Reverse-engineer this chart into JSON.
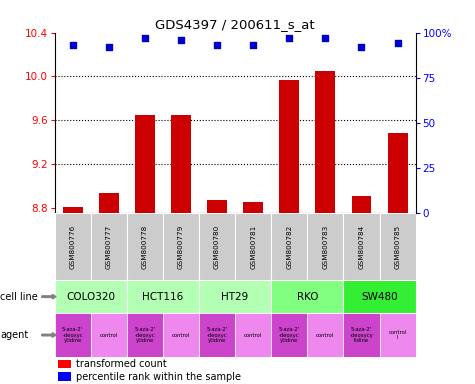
{
  "title": "GDS4397 / 200611_s_at",
  "samples": [
    "GSM800776",
    "GSM800777",
    "GSM800778",
    "GSM800779",
    "GSM800780",
    "GSM800781",
    "GSM800782",
    "GSM800783",
    "GSM800784",
    "GSM800785"
  ],
  "transformed_counts": [
    8.81,
    8.93,
    9.65,
    9.65,
    8.87,
    8.85,
    9.97,
    10.05,
    8.91,
    9.48
  ],
  "percentile_ranks": [
    93,
    92,
    97,
    96,
    93,
    93,
    97,
    97,
    92,
    94
  ],
  "ylim_left": [
    8.75,
    10.4
  ],
  "ylim_right": [
    0,
    100
  ],
  "yticks_left": [
    8.8,
    9.2,
    9.6,
    10.0,
    10.4
  ],
  "yticks_right": [
    0,
    25,
    50,
    75,
    100
  ],
  "cell_lines": [
    {
      "name": "COLO320",
      "start": 0,
      "end": 2,
      "color": "#b3ffb3"
    },
    {
      "name": "HCT116",
      "start": 2,
      "end": 4,
      "color": "#b3ffb3"
    },
    {
      "name": "HT29",
      "start": 4,
      "end": 6,
      "color": "#b3ffb3"
    },
    {
      "name": "RKO",
      "start": 6,
      "end": 8,
      "color": "#80ff80"
    },
    {
      "name": "SW480",
      "start": 8,
      "end": 10,
      "color": "#33ee33"
    }
  ],
  "agent_labels": [
    "5-aza-2'\n-deoxyc\nytidine",
    "control",
    "5-aza-2'\n-deoxyc\nytidine",
    "control",
    "5-aza-2'\n-deoxyc\nytidine",
    "control",
    "5-aza-2'\n-deoxyc\nytidine",
    "control",
    "5-aza-2'\n-deoxycy\ntidine",
    "control\nl"
  ],
  "agent_colors": [
    "#dd44dd",
    "#ee88ee",
    "#dd44dd",
    "#ee88ee",
    "#dd44dd",
    "#ee88ee",
    "#dd44dd",
    "#ee88ee",
    "#dd44dd",
    "#ee88ee"
  ],
  "bar_color": "#cc0000",
  "dot_color": "#0000cc",
  "sample_bg_color": "#cccccc",
  "legend_bar_label": "transformed count",
  "legend_dot_label": "percentile rank within the sample"
}
